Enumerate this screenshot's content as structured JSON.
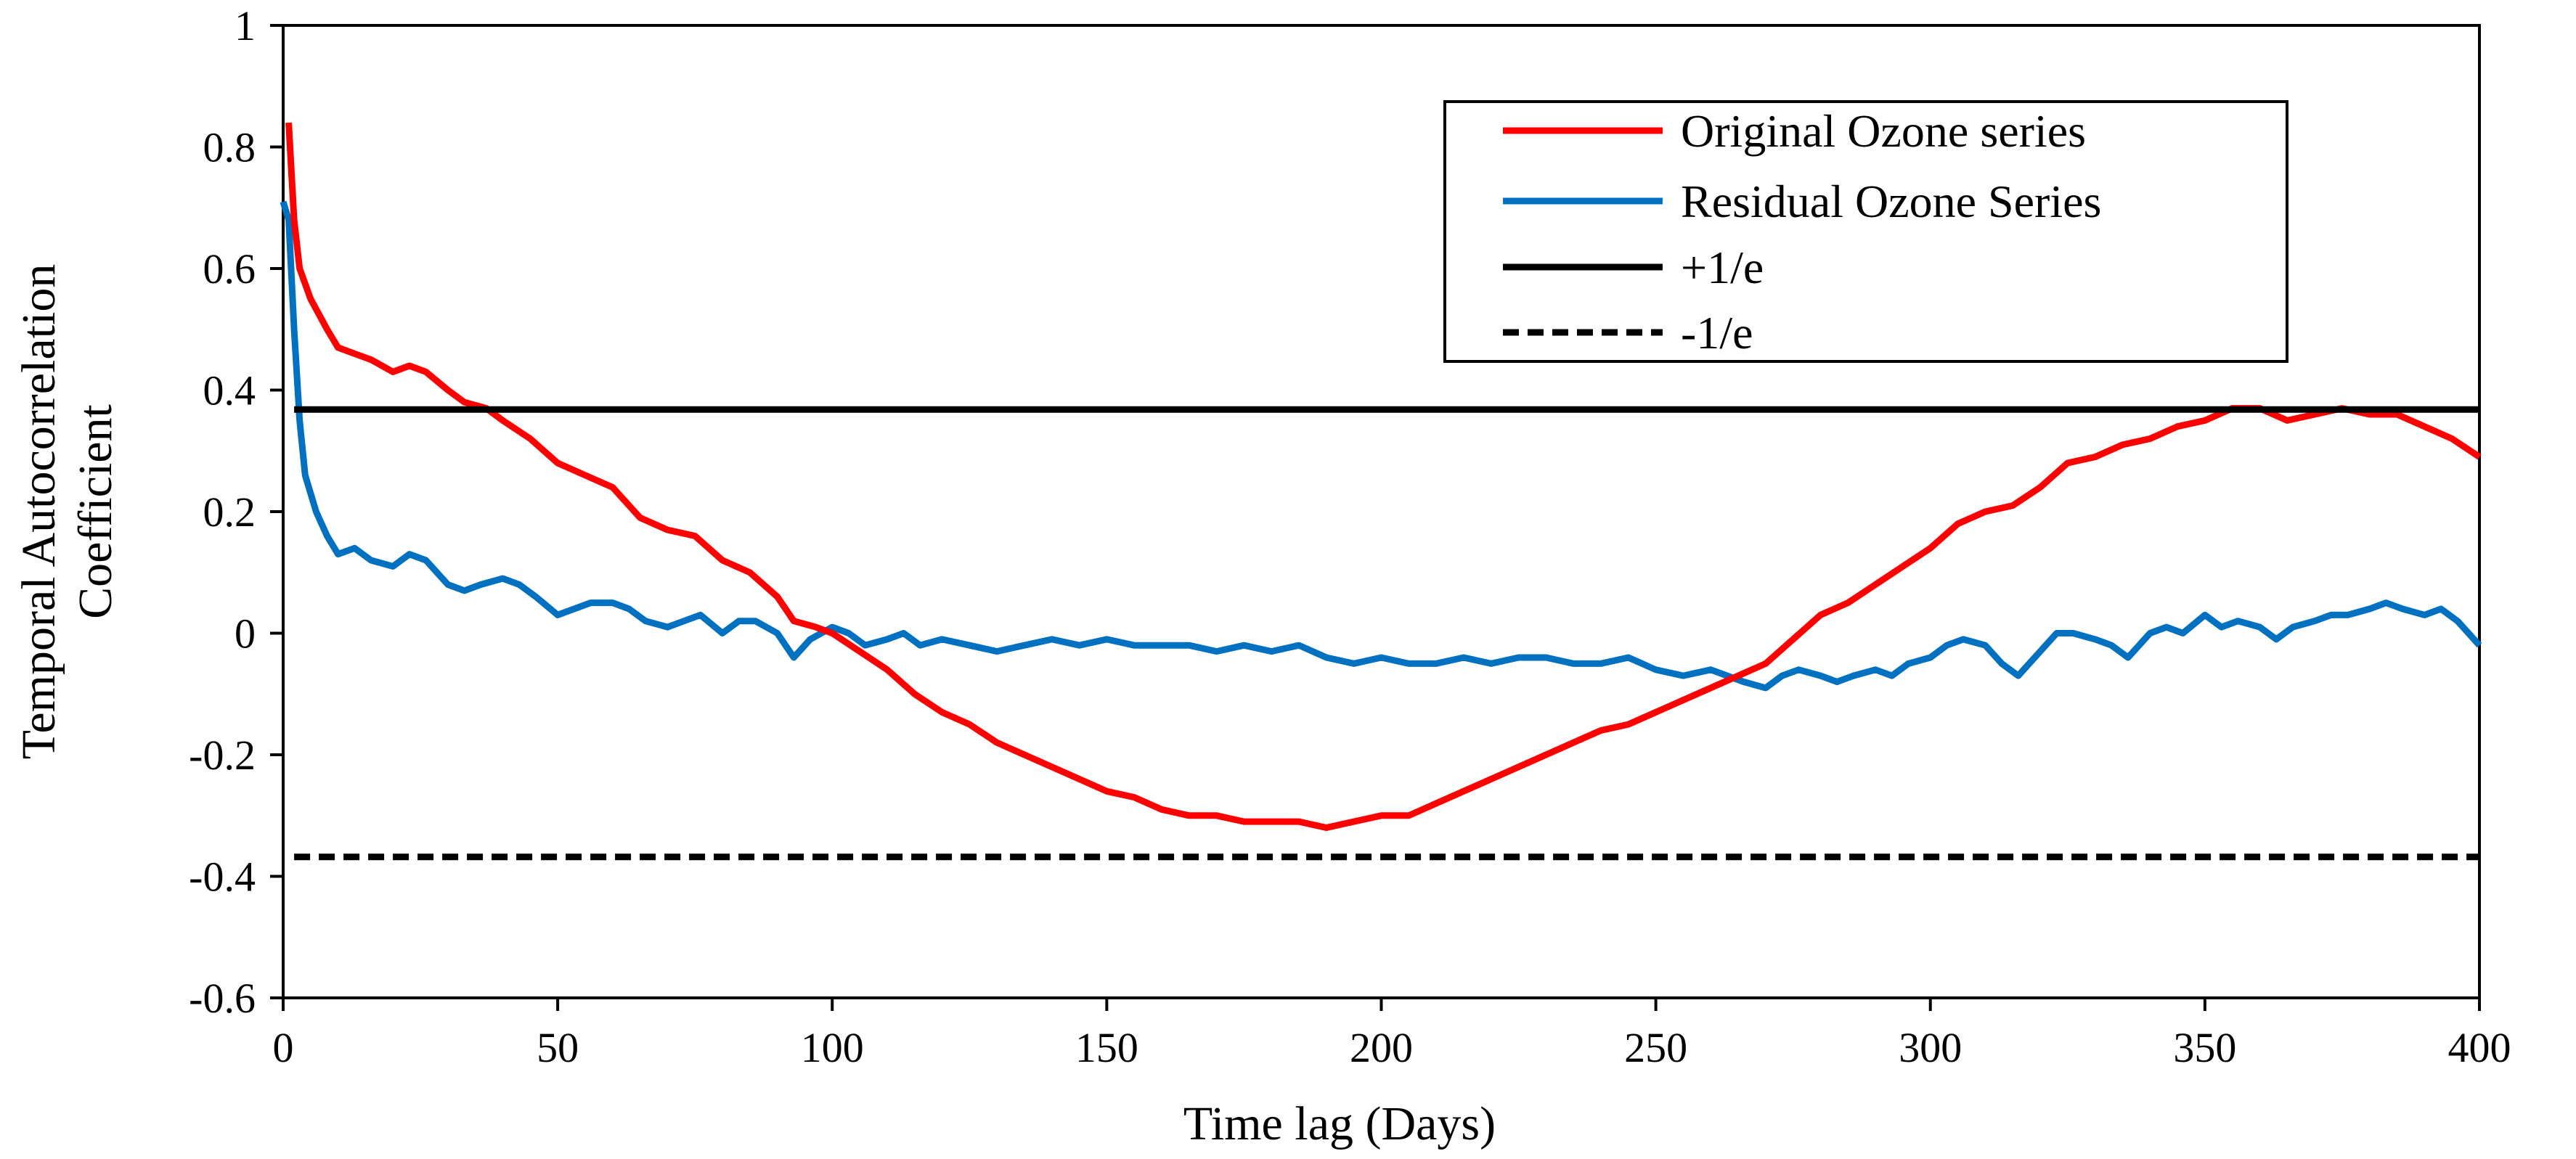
{
  "chart_data": {
    "type": "line",
    "title": "",
    "xlabel": "Time lag (Days)",
    "ylabel_lines": [
      "Temporal Autocorrelation",
      "Coefficient"
    ],
    "xlim": [
      0,
      400
    ],
    "ylim": [
      -0.6,
      1
    ],
    "xticks": [
      0,
      50,
      100,
      150,
      200,
      250,
      300,
      350,
      400
    ],
    "xtick_labels": [
      "0",
      "50",
      "100",
      "150",
      "200",
      "250",
      "300",
      "350",
      "400"
    ],
    "yticks": [
      -0.6,
      -0.4,
      -0.2,
      0,
      0.2,
      0.4,
      0.6,
      0.8,
      1
    ],
    "ytick_labels": [
      "-0.6",
      "-0.4",
      "-0.2",
      "0",
      "0.2",
      "0.4",
      "0.6",
      "0.8",
      "1"
    ],
    "grid": false,
    "legend_position": "top-right",
    "series": [
      {
        "name": "Original Ozone series",
        "color": "#ff0000",
        "style": "solid",
        "points": [
          [
            1,
            0.84
          ],
          [
            2,
            0.68
          ],
          [
            3,
            0.6
          ],
          [
            5,
            0.55
          ],
          [
            8,
            0.5
          ],
          [
            10,
            0.47
          ],
          [
            13,
            0.46
          ],
          [
            16,
            0.45
          ],
          [
            20,
            0.43
          ],
          [
            23,
            0.44
          ],
          [
            26,
            0.43
          ],
          [
            30,
            0.4
          ],
          [
            33,
            0.38
          ],
          [
            37,
            0.37
          ],
          [
            40,
            0.35
          ],
          [
            45,
            0.32
          ],
          [
            50,
            0.28
          ],
          [
            55,
            0.26
          ],
          [
            60,
            0.24
          ],
          [
            65,
            0.19
          ],
          [
            70,
            0.17
          ],
          [
            75,
            0.16
          ],
          [
            80,
            0.12
          ],
          [
            85,
            0.1
          ],
          [
            90,
            0.06
          ],
          [
            93,
            0.02
          ],
          [
            97,
            0.01
          ],
          [
            100,
            0.0
          ],
          [
            105,
            -0.03
          ],
          [
            110,
            -0.06
          ],
          [
            115,
            -0.1
          ],
          [
            120,
            -0.13
          ],
          [
            125,
            -0.15
          ],
          [
            130,
            -0.18
          ],
          [
            135,
            -0.2
          ],
          [
            140,
            -0.22
          ],
          [
            145,
            -0.24
          ],
          [
            150,
            -0.26
          ],
          [
            155,
            -0.27
          ],
          [
            160,
            -0.29
          ],
          [
            165,
            -0.3
          ],
          [
            170,
            -0.3
          ],
          [
            175,
            -0.31
          ],
          [
            180,
            -0.31
          ],
          [
            185,
            -0.31
          ],
          [
            190,
            -0.32
          ],
          [
            195,
            -0.31
          ],
          [
            200,
            -0.3
          ],
          [
            205,
            -0.3
          ],
          [
            210,
            -0.28
          ],
          [
            215,
            -0.26
          ],
          [
            220,
            -0.24
          ],
          [
            225,
            -0.22
          ],
          [
            230,
            -0.2
          ],
          [
            235,
            -0.18
          ],
          [
            240,
            -0.16
          ],
          [
            245,
            -0.15
          ],
          [
            250,
            -0.13
          ],
          [
            255,
            -0.11
          ],
          [
            260,
            -0.09
          ],
          [
            265,
            -0.07
          ],
          [
            270,
            -0.05
          ],
          [
            275,
            -0.01
          ],
          [
            280,
            0.03
          ],
          [
            285,
            0.05
          ],
          [
            290,
            0.08
          ],
          [
            295,
            0.11
          ],
          [
            300,
            0.14
          ],
          [
            305,
            0.18
          ],
          [
            310,
            0.2
          ],
          [
            315,
            0.21
          ],
          [
            320,
            0.24
          ],
          [
            325,
            0.28
          ],
          [
            330,
            0.29
          ],
          [
            335,
            0.31
          ],
          [
            340,
            0.32
          ],
          [
            345,
            0.34
          ],
          [
            350,
            0.35
          ],
          [
            355,
            0.37
          ],
          [
            360,
            0.37
          ],
          [
            365,
            0.35
          ],
          [
            370,
            0.36
          ],
          [
            375,
            0.37
          ],
          [
            380,
            0.36
          ],
          [
            385,
            0.36
          ],
          [
            390,
            0.34
          ],
          [
            395,
            0.32
          ],
          [
            400,
            0.29
          ]
        ]
      },
      {
        "name": "Residual Ozone Series",
        "color": "#0070c0",
        "style": "solid",
        "points": [
          [
            0,
            0.71
          ],
          [
            1,
            0.68
          ],
          [
            2,
            0.5
          ],
          [
            3,
            0.35
          ],
          [
            4,
            0.26
          ],
          [
            6,
            0.2
          ],
          [
            8,
            0.16
          ],
          [
            10,
            0.13
          ],
          [
            13,
            0.14
          ],
          [
            16,
            0.12
          ],
          [
            20,
            0.11
          ],
          [
            23,
            0.13
          ],
          [
            26,
            0.12
          ],
          [
            30,
            0.08
          ],
          [
            33,
            0.07
          ],
          [
            36,
            0.08
          ],
          [
            40,
            0.09
          ],
          [
            43,
            0.08
          ],
          [
            46,
            0.06
          ],
          [
            50,
            0.03
          ],
          [
            53,
            0.04
          ],
          [
            56,
            0.05
          ],
          [
            60,
            0.05
          ],
          [
            63,
            0.04
          ],
          [
            66,
            0.02
          ],
          [
            70,
            0.01
          ],
          [
            73,
            0.02
          ],
          [
            76,
            0.03
          ],
          [
            80,
            0.0
          ],
          [
            83,
            0.02
          ],
          [
            86,
            0.02
          ],
          [
            90,
            0.0
          ],
          [
            93,
            -0.04
          ],
          [
            96,
            -0.01
          ],
          [
            100,
            0.01
          ],
          [
            103,
            0.0
          ],
          [
            106,
            -0.02
          ],
          [
            110,
            -0.01
          ],
          [
            113,
            0.0
          ],
          [
            116,
            -0.02
          ],
          [
            120,
            -0.01
          ],
          [
            125,
            -0.02
          ],
          [
            130,
            -0.03
          ],
          [
            135,
            -0.02
          ],
          [
            140,
            -0.01
          ],
          [
            145,
            -0.02
          ],
          [
            150,
            -0.01
          ],
          [
            155,
            -0.02
          ],
          [
            160,
            -0.02
          ],
          [
            165,
            -0.02
          ],
          [
            170,
            -0.03
          ],
          [
            175,
            -0.02
          ],
          [
            180,
            -0.03
          ],
          [
            185,
            -0.02
          ],
          [
            190,
            -0.04
          ],
          [
            195,
            -0.05
          ],
          [
            200,
            -0.04
          ],
          [
            205,
            -0.05
          ],
          [
            210,
            -0.05
          ],
          [
            215,
            -0.04
          ],
          [
            220,
            -0.05
          ],
          [
            225,
            -0.04
          ],
          [
            230,
            -0.04
          ],
          [
            235,
            -0.05
          ],
          [
            240,
            -0.05
          ],
          [
            245,
            -0.04
          ],
          [
            250,
            -0.06
          ],
          [
            255,
            -0.07
          ],
          [
            260,
            -0.06
          ],
          [
            263,
            -0.07
          ],
          [
            266,
            -0.08
          ],
          [
            270,
            -0.09
          ],
          [
            273,
            -0.07
          ],
          [
            276,
            -0.06
          ],
          [
            280,
            -0.07
          ],
          [
            283,
            -0.08
          ],
          [
            286,
            -0.07
          ],
          [
            290,
            -0.06
          ],
          [
            293,
            -0.07
          ],
          [
            296,
            -0.05
          ],
          [
            300,
            -0.04
          ],
          [
            303,
            -0.02
          ],
          [
            306,
            -0.01
          ],
          [
            310,
            -0.02
          ],
          [
            313,
            -0.05
          ],
          [
            316,
            -0.07
          ],
          [
            320,
            -0.03
          ],
          [
            323,
            0.0
          ],
          [
            326,
            0.0
          ],
          [
            330,
            -0.01
          ],
          [
            333,
            -0.02
          ],
          [
            336,
            -0.04
          ],
          [
            340,
            0.0
          ],
          [
            343,
            0.01
          ],
          [
            346,
            0.0
          ],
          [
            350,
            0.03
          ],
          [
            353,
            0.01
          ],
          [
            356,
            0.02
          ],
          [
            360,
            0.01
          ],
          [
            363,
            -0.01
          ],
          [
            366,
            0.01
          ],
          [
            370,
            0.02
          ],
          [
            373,
            0.03
          ],
          [
            376,
            0.03
          ],
          [
            380,
            0.04
          ],
          [
            383,
            0.05
          ],
          [
            386,
            0.04
          ],
          [
            390,
            0.03
          ],
          [
            393,
            0.04
          ],
          [
            396,
            0.02
          ],
          [
            400,
            -0.02
          ]
        ]
      },
      {
        "name": "+1/e",
        "color": "#000000",
        "style": "solid",
        "points": [
          [
            2,
            0.368
          ],
          [
            400,
            0.368
          ]
        ]
      },
      {
        "name": "-1/e",
        "color": "#000000",
        "style": "dashed",
        "points": [
          [
            2,
            -0.368
          ],
          [
            400,
            -0.368
          ]
        ]
      }
    ]
  }
}
